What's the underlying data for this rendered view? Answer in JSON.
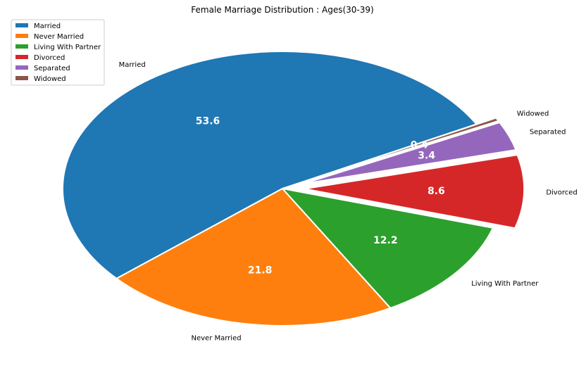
{
  "chart_data": {
    "type": "pie",
    "title": "Female Marriage Distribution : Ages(30-39)",
    "categories": [
      "Married",
      "Never Married",
      "Living With Partner",
      "Divorced",
      "Separated",
      "Widowed"
    ],
    "values": [
      53.6,
      21.8,
      12.2,
      8.6,
      3.4,
      0.4
    ],
    "value_labels": [
      "53.6",
      "21.8",
      "12.2",
      "8.6",
      "3.4",
      "0.4"
    ],
    "colors": [
      "#1f77b4",
      "#ff7f0e",
      "#2ca02c",
      "#d62728",
      "#9467bd",
      "#8c564b"
    ],
    "exploded": [
      "Divorced",
      "Separated",
      "Widowed"
    ],
    "legend": {
      "position": "top-left",
      "entries": [
        "Married",
        "Never Married",
        "Living With Partner",
        "Divorced",
        "Separated",
        "Widowed"
      ]
    }
  }
}
